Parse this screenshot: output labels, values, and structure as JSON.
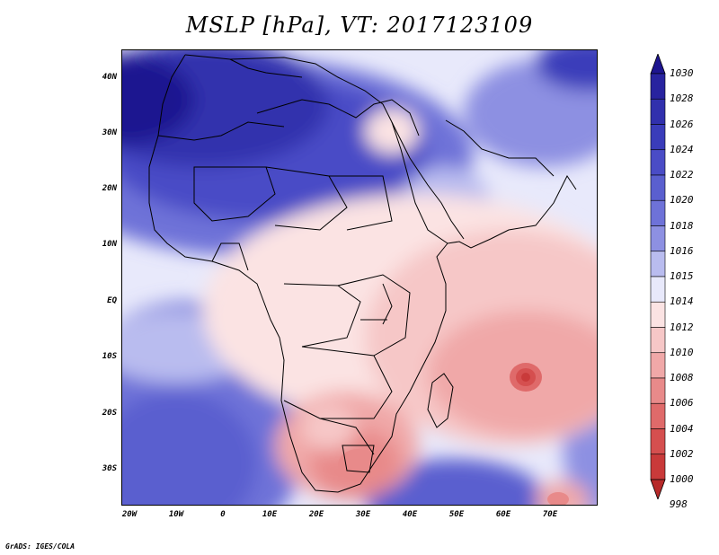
{
  "title": "MSLP [hPa], VT: 2017123109",
  "footer": "GrADS: IGES/COLA",
  "lat_labels": [
    "40N",
    "30N",
    "20N",
    "10N",
    "EQ",
    "10S",
    "20S",
    "30S"
  ],
  "lon_labels": [
    "20W",
    "10W",
    "0",
    "10E",
    "20E",
    "30E",
    "40E",
    "50E",
    "60E",
    "70E"
  ],
  "colorbar": {
    "levels": [
      "1030",
      "1028",
      "1026",
      "1024",
      "1022",
      "1020",
      "1018",
      "1016",
      "1015",
      "1014",
      "1012",
      "1010",
      "1008",
      "1006",
      "1004",
      "1002",
      "1000",
      "998"
    ],
    "colors": [
      "#1e1590",
      "#28239f",
      "#3130ad",
      "#3a3cba",
      "#4a4cc6",
      "#5a5fcf",
      "#6e72d8",
      "#8d90e2",
      "#b9bcef",
      "#e8e9fb",
      "#fbe3e3",
      "#f6c7c7",
      "#f0a8a8",
      "#e88a8a",
      "#df6a6a",
      "#d54f4f",
      "#c93a3a",
      "#b72a2a"
    ]
  },
  "regions": {
    "high_pressure_north": "1026",
    "low_pressure_south_africa": "1006",
    "indian_ocean_low": "1002"
  }
}
